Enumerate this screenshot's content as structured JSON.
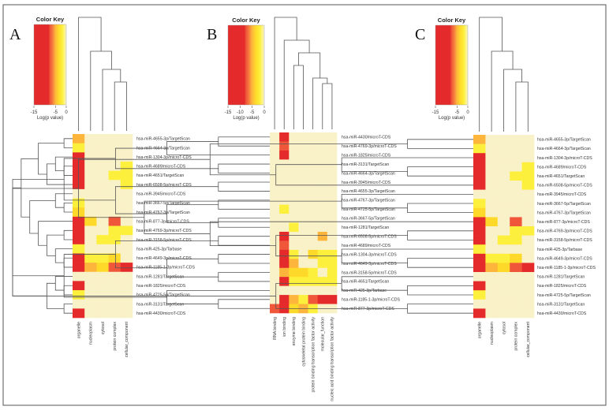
{
  "colors": {
    "background": "#f9f1c8",
    "level_1": "#fdf03c",
    "level_2": "#ffd92a",
    "level_3": "#fdb53c",
    "level_4": "#f57e3c",
    "level_5": "#f0563a",
    "level_6": "#e42a2a"
  },
  "chart_data": [
    {
      "type": "heatmap",
      "panel": "A",
      "color_key": {
        "title": "Color Key",
        "xlabel": "Log(p value)",
        "ticks": [
          "-15",
          "-5",
          "0"
        ],
        "range": [
          -15,
          0
        ]
      },
      "columns": [
        "organelle",
        "nucleoplasm",
        "cytosol",
        "protein complex",
        "cellular_component"
      ],
      "rows": [
        "hsa-miR-4655-3p/TargetScan",
        "hsa-miR-4664-3p/TargetScan",
        "hsa-miR-1304-3p/microT-CDS",
        "hsa-miR-4689/microT-CDS",
        "hsa-miR-4651/TargetScan",
        "hsa-miR-6508-5p/microT-CDS",
        "hsa-miR-3945/microT-CDS",
        "hsa-miR-3667-5p/TargetScan",
        "hsa-miR-4767-3p/TargetScan",
        "hsa-miR-877-3p/microT-CDS",
        "hsa-miR-4769-3p/microT-CDS",
        "hsa-miR-3158-5p/microT-CDS",
        "hsa-miR-425-3p/Tarbase",
        "hsa-miR-4649-3p/microT-CDS",
        "hsa-miR-1185-1-3p/microT-CDS",
        "hsa-miR-1281/TargetScan",
        "hsa-miR-1825/microT-CDS",
        "hsa-miR-4725-5p/TargetScan",
        "hsa-miR-3131/TargetScan",
        "hsa-miR-4430/microT-CDS"
      ],
      "values": [
        [
          -7,
          0,
          0,
          0,
          0
        ],
        [
          -3,
          0,
          0,
          0,
          0
        ],
        [
          -15,
          0,
          0,
          0,
          0
        ],
        [
          -15,
          0,
          0,
          0,
          -3
        ],
        [
          -15,
          0,
          0,
          -3,
          -3
        ],
        [
          -15,
          0,
          0,
          0,
          -3
        ],
        [
          0,
          0,
          0,
          0,
          0
        ],
        [
          -3,
          0,
          0,
          0,
          0
        ],
        [
          -4,
          0,
          0,
          0,
          0
        ],
        [
          -15,
          -4,
          0,
          -12,
          0
        ],
        [
          -15,
          0,
          0,
          -3,
          -3
        ],
        [
          -15,
          0,
          -3,
          -3,
          0
        ],
        [
          -3,
          0,
          0,
          0,
          0
        ],
        [
          -15,
          -3,
          -3,
          -4,
          0
        ],
        [
          -15,
          -7,
          -4,
          -12,
          -15
        ],
        [
          0,
          0,
          0,
          0,
          0
        ],
        [
          -15,
          0,
          0,
          0,
          0
        ],
        [
          -3,
          0,
          0,
          0,
          0
        ],
        [
          0,
          0,
          0,
          0,
          0
        ],
        [
          -15,
          0,
          0,
          0,
          0
        ]
      ]
    },
    {
      "type": "heatmap",
      "panel": "B",
      "color_key": {
        "title": "Color Key",
        "xlabel": "Log(p value)",
        "ticks": [
          "-15",
          "-10",
          "-5",
          "0"
        ],
        "range": [
          -15,
          0
        ]
      },
      "columns": [
        "RNA binding",
        "ion binding",
        "enzyme binding",
        "cytoskeletal protein binding",
        "protein binding transcription factor activity",
        "molecular_function",
        "nucleic acid binding transcription factor activity"
      ],
      "rows": [
        "hsa-miR-4430/microT-CDS",
        "hsa-miR-4769-3p/microT-CDS",
        "hsa-miR-1825/microT-CDS",
        "hsa-miR-3131/TargetScan",
        "hsa-miR-4664-3p/TargetScan",
        "hsa-miR-3945/microT-CDS",
        "hsa-miR-4655-3p/TargetScan",
        "hsa-miR-4767-3p/TargetScan",
        "hsa-miR-4725-5p/TargetScan",
        "hsa-miR-3667-5p/TargetScan",
        "hsa-miR-1281/TargetScan",
        "hsa-miR-6508-5p/microT-CDS",
        "hsa-miR-4689/microT-CDS",
        "hsa-miR-1304-3p/microT-CDS",
        "hsa-miR-4649-3p/microT-CDS",
        "hsa-miR-3158-5p/microT-CDS",
        "hsa-miR-4651/TargetScan",
        "hsa-miR-425-3p/Tarbase",
        "hsa-miR-1185-1-3p/microT-CDS",
        "hsa-miR-877-3p/microT-CDS"
      ],
      "values": [
        [
          0,
          -15,
          0,
          0,
          0,
          0,
          0
        ],
        [
          0,
          -10,
          0,
          0,
          0,
          0,
          0
        ],
        [
          0,
          -15,
          0,
          0,
          0,
          0,
          0
        ],
        [
          0,
          0,
          0,
          0,
          0,
          0,
          0
        ],
        [
          0,
          0,
          0,
          0,
          0,
          0,
          0
        ],
        [
          0,
          0,
          0,
          0,
          0,
          0,
          0
        ],
        [
          0,
          0,
          0,
          0,
          0,
          0,
          0
        ],
        [
          0,
          0,
          0,
          0,
          0,
          0,
          0
        ],
        [
          0,
          -3,
          0,
          0,
          0,
          0,
          0
        ],
        [
          0,
          0,
          0,
          0,
          0,
          0,
          0
        ],
        [
          0,
          0,
          -3,
          0,
          0,
          0,
          0
        ],
        [
          0,
          -15,
          0,
          0,
          0,
          -7,
          0
        ],
        [
          0,
          -12,
          0,
          0,
          0,
          0,
          0
        ],
        [
          0,
          -15,
          -3,
          0,
          -4,
          -3,
          -3
        ],
        [
          0,
          -15,
          -7,
          0,
          0,
          -3,
          -3
        ],
        [
          0,
          -7,
          -4,
          -4,
          -3,
          0,
          -3
        ],
        [
          0,
          -15,
          -3,
          -3,
          -3,
          -3,
          -3
        ],
        [
          0,
          0,
          0,
          0,
          0,
          0,
          0
        ],
        [
          0,
          -15,
          -7,
          -3,
          -12,
          -15,
          -15
        ],
        [
          -10,
          -15,
          -4,
          -7,
          -3,
          0,
          0
        ]
      ]
    },
    {
      "type": "heatmap",
      "panel": "C",
      "color_key": {
        "title": "Color Key",
        "xlabel": "Log(p value)",
        "ticks": [
          "-15",
          "-5",
          "0"
        ],
        "range": [
          -15,
          0
        ]
      },
      "columns": [
        "organelle",
        "nucleoplasm",
        "cytosol",
        "protein complex",
        "cellular_component"
      ],
      "rows": [
        "hsa-miR-4655-3p/TargetScan",
        "hsa-miR-4664-3p/TargetScan",
        "hsa-miR-1304-3p/microT-CDS",
        "hsa-miR-4689/microT-CDS",
        "hsa-miR-4651/TargetScan",
        "hsa-miR-6508-5p/microT-CDS",
        "hsa-miR-3945/microT-CDS",
        "hsa-miR-3667-5p/TargetScan",
        "hsa-miR-4767-3p/TargetScan",
        "hsa-miR-877-3p/microT-CDS",
        "hsa-miR-4769-3p/microT-CDS",
        "hsa-miR-3158-5p/microT-CDS",
        "hsa-miR-425-3p/Tarbase",
        "hsa-miR-4649-3p/microT-CDS",
        "hsa-miR-1185-1-3p/microT-CDS",
        "hsa-miR-1281/TargetScan",
        "hsa-miR-1825/microT-CDS",
        "hsa-miR-4725-5p/TargetScan",
        "hsa-miR-3131/TargetScan",
        "hsa-miR-4430/microT-CDS"
      ],
      "values": [
        [
          -7,
          0,
          0,
          0,
          0
        ],
        [
          -3,
          0,
          0,
          0,
          0
        ],
        [
          -15,
          0,
          0,
          0,
          0
        ],
        [
          -15,
          0,
          0,
          0,
          -3
        ],
        [
          -15,
          0,
          0,
          -3,
          -3
        ],
        [
          -15,
          0,
          0,
          0,
          -3
        ],
        [
          0,
          0,
          0,
          0,
          0
        ],
        [
          -3,
          0,
          0,
          0,
          0
        ],
        [
          -4,
          0,
          0,
          0,
          0
        ],
        [
          -15,
          -4,
          0,
          -12,
          0
        ],
        [
          -15,
          0,
          0,
          -3,
          -3
        ],
        [
          -15,
          0,
          -3,
          -3,
          0
        ],
        [
          -3,
          0,
          0,
          0,
          0
        ],
        [
          -15,
          -3,
          -3,
          -4,
          0
        ],
        [
          -15,
          -7,
          -4,
          -12,
          -15
        ],
        [
          0,
          0,
          0,
          0,
          0
        ],
        [
          -15,
          0,
          0,
          0,
          0
        ],
        [
          -3,
          0,
          0,
          0,
          0
        ],
        [
          0,
          0,
          0,
          0,
          0
        ],
        [
          -15,
          0,
          0,
          0,
          0
        ]
      ]
    }
  ]
}
